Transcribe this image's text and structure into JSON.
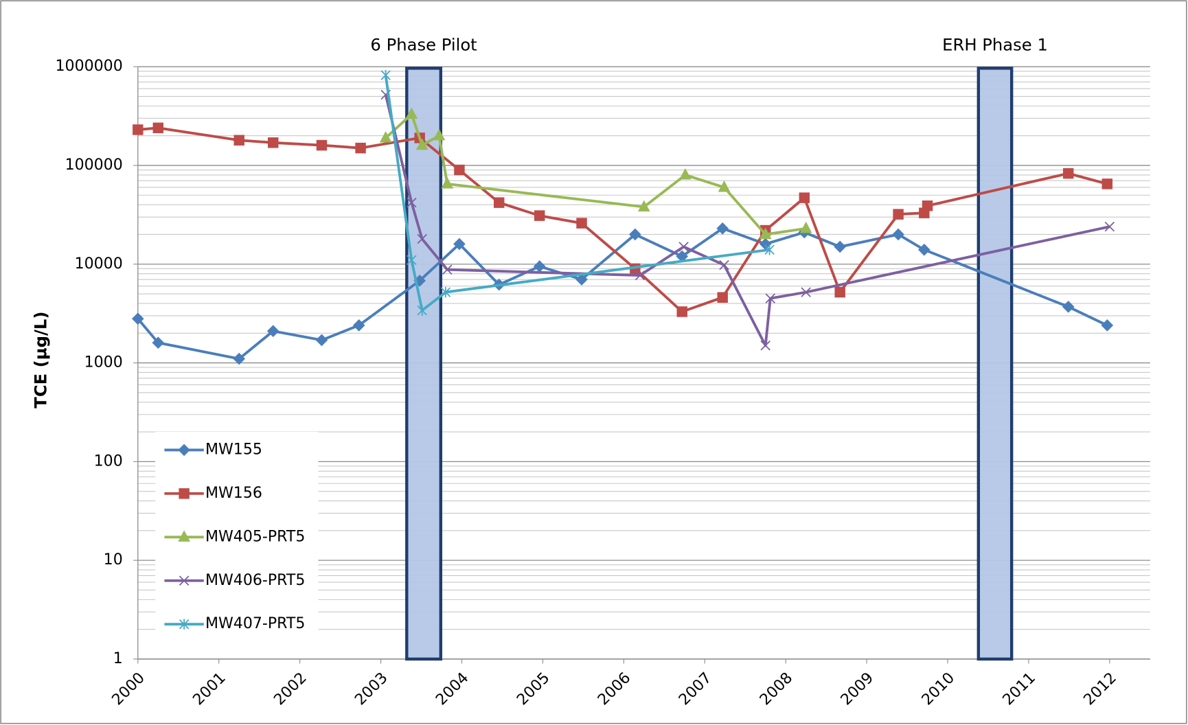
{
  "chart_data": {
    "type": "line",
    "y_label": "TCE (µg/L)",
    "log_scale": true,
    "grid": true,
    "minor_grid": true,
    "legend": "lower-left",
    "xlim": [
      2000,
      2012.5
    ],
    "xticks": [
      2000,
      2001,
      2002,
      2003,
      2004,
      2005,
      2006,
      2007,
      2008,
      2009,
      2010,
      2011,
      2012
    ],
    "ylim": [
      1,
      1000000
    ],
    "yticks": [
      1,
      10,
      100,
      1000,
      10000,
      100000,
      1000000
    ],
    "shaded_periods": [
      {
        "label": "6 Phase Pilot",
        "start": 2003.32,
        "end": 2003.74,
        "color": "#b4c7e7"
      },
      {
        "label": "ERH Phase 1",
        "start": 2010.38,
        "end": 2010.79,
        "color": "#b4c7e7"
      }
    ],
    "series": [
      {
        "name": "MW155",
        "color": "#4a7ebb",
        "marker": "diamond",
        "x": [
          2000.0,
          2000.25,
          2001.25,
          2001.67,
          2002.27,
          2002.73,
          2003.48,
          2003.97,
          2004.46,
          2004.96,
          2005.48,
          2006.14,
          2006.72,
          2007.22,
          2007.75,
          2008.23,
          2008.67,
          2009.39,
          2009.71,
          2011.49,
          2011.97
        ],
        "values": [
          2800,
          1600,
          1100,
          2100,
          1700,
          2400,
          6800,
          16000,
          6200,
          9500,
          7000,
          20000,
          12000,
          23000,
          16000,
          21000,
          15000,
          20000,
          14000,
          3700,
          2400
        ]
      },
      {
        "name": "MW156",
        "color": "#be4b48",
        "marker": "square",
        "x": [
          2000.0,
          2000.25,
          2001.25,
          2001.67,
          2002.27,
          2002.75,
          2003.48,
          2003.97,
          2004.46,
          2004.96,
          2005.48,
          2006.14,
          2006.72,
          2007.22,
          2007.75,
          2008.23,
          2008.67,
          2009.39,
          2009.71,
          2009.75,
          2011.49,
          2011.97
        ],
        "values": [
          230000,
          240000,
          180000,
          170000,
          160000,
          150000,
          190000,
          90000,
          42000,
          31000,
          26000,
          9000,
          3300,
          4600,
          22000,
          47000,
          5200,
          32000,
          33000,
          39000,
          83000,
          65000
        ]
      },
      {
        "name": "MW405-PRT5",
        "color": "#98b954",
        "marker": "triangle",
        "x": [
          2003.06,
          2003.38,
          2003.51,
          2003.72,
          2003.82,
          2006.25,
          2006.76,
          2007.24,
          2007.75,
          2008.25
        ],
        "values": [
          190000,
          330000,
          160000,
          200000,
          65000,
          38000,
          80000,
          60000,
          20000,
          23000
        ]
      },
      {
        "name": "MW406-PRT5",
        "color": "#7d60a0",
        "marker": "x",
        "x": [
          2003.06,
          2003.38,
          2003.51,
          2003.82,
          2006.2,
          2006.74,
          2007.24,
          2007.75,
          2007.81,
          2008.25,
          2012.0
        ],
        "values": [
          520000,
          42000,
          18000,
          8800,
          7700,
          15000,
          9800,
          1500,
          4500,
          5200,
          24000
        ]
      },
      {
        "name": "MW407-PRT5",
        "color": "#46aac5",
        "marker": "star",
        "x": [
          2003.06,
          2003.38,
          2003.51,
          2003.8,
          2007.8
        ],
        "values": [
          820000,
          11000,
          3400,
          5200,
          14000
        ]
      }
    ]
  }
}
